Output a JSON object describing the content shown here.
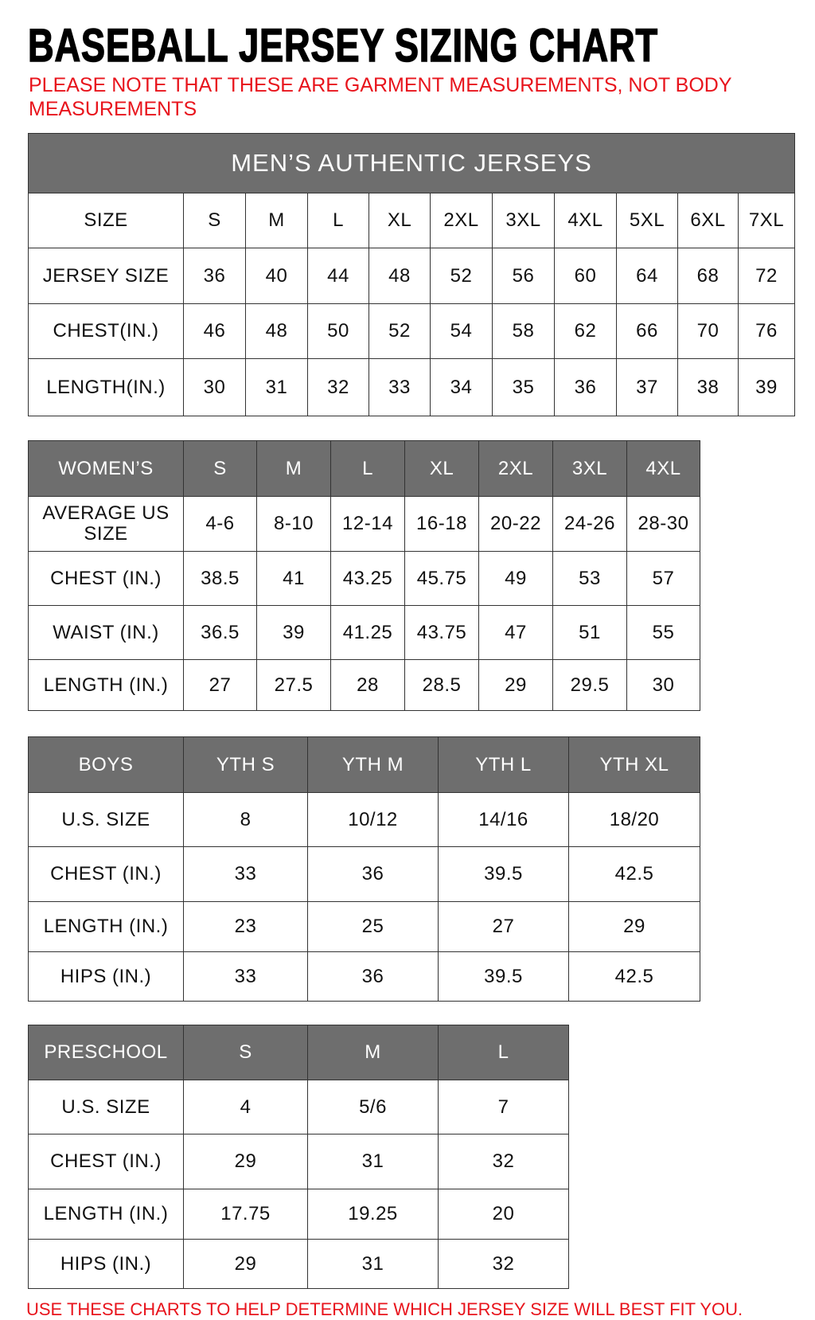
{
  "title": "BASEBALL JERSEY SIZING CHART",
  "note": "PLEASE NOTE THAT THESE ARE GARMENT MEASUREMENTS, NOT BODY MEASUREMENTS",
  "footer": "USE THESE CHARTS TO HELP DETERMINE WHICH JERSEY SIZE WILL BEST FIT YOU.",
  "colors": {
    "header_bg": "#6e6e6e",
    "note_red": "#e8141c"
  },
  "mens": {
    "caption": "MEN’S AUTHENTIC JERSEYS",
    "rows": [
      [
        "SIZE",
        "S",
        "M",
        "L",
        "XL",
        "2XL",
        "3XL",
        "4XL",
        "5XL",
        "6XL",
        "7XL"
      ],
      [
        "JERSEY SIZE",
        "36",
        "40",
        "44",
        "48",
        "52",
        "56",
        "60",
        "64",
        "68",
        "72"
      ],
      [
        "CHEST(IN.)",
        "46",
        "48",
        "50",
        "52",
        "54",
        "58",
        "62",
        "66",
        "70",
        "76"
      ],
      [
        "LENGTH(IN.)",
        "30",
        "31",
        "32",
        "33",
        "34",
        "35",
        "36",
        "37",
        "38",
        "39"
      ]
    ]
  },
  "womens": {
    "header": [
      "WOMEN’S",
      "S",
      "M",
      "L",
      "XL",
      "2XL",
      "3XL",
      "4XL"
    ],
    "rows": [
      [
        "AVERAGE US SIZE",
        "4-6",
        "8-10",
        "12-14",
        "16-18",
        "20-22",
        "24-26",
        "28-30"
      ],
      [
        "CHEST (IN.)",
        "38.5",
        "41",
        "43.25",
        "45.75",
        "49",
        "53",
        "57"
      ],
      [
        "WAIST (IN.)",
        "36.5",
        "39",
        "41.25",
        "43.75",
        "47",
        "51",
        "55"
      ],
      [
        "LENGTH (IN.)",
        "27",
        "27.5",
        "28",
        "28.5",
        "29",
        "29.5",
        "30"
      ]
    ]
  },
  "boys": {
    "header": [
      "BOYS",
      "YTH S",
      "YTH M",
      "YTH L",
      "YTH XL"
    ],
    "rows": [
      [
        "U.S. SIZE",
        "8",
        "10/12",
        "14/16",
        "18/20"
      ],
      [
        "CHEST (IN.)",
        "33",
        "36",
        "39.5",
        "42.5"
      ],
      [
        "LENGTH (IN.)",
        "23",
        "25",
        "27",
        "29"
      ],
      [
        "HIPS (IN.)",
        "33",
        "36",
        "39.5",
        "42.5"
      ]
    ]
  },
  "preschool": {
    "header": [
      "PRESCHOOL",
      "S",
      "M",
      "L"
    ],
    "rows": [
      [
        "U.S. SIZE",
        "4",
        "5/6",
        "7"
      ],
      [
        "CHEST (IN.)",
        "29",
        "31",
        "32"
      ],
      [
        "LENGTH (IN.)",
        "17.75",
        "19.25",
        "20"
      ],
      [
        "HIPS (IN.)",
        "29",
        "31",
        "32"
      ]
    ]
  }
}
